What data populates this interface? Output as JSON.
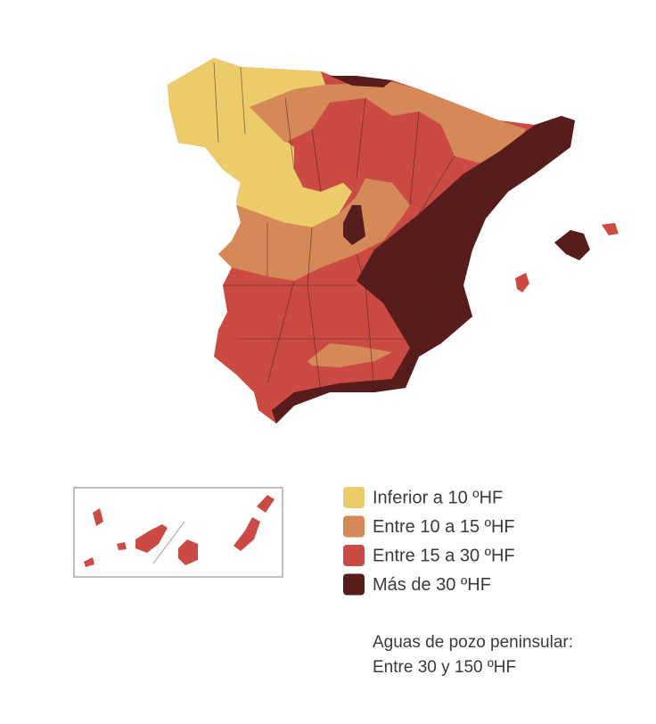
{
  "legend": {
    "items": [
      {
        "label": "Inferior a 10 ºHF",
        "color": "#eccb6b"
      },
      {
        "label": "Entre 10 a 15 ºHF",
        "color": "#d58858"
      },
      {
        "label": "Entre 15 a 30 ºHF",
        "color": "#cc4a44"
      },
      {
        "label": "Más de 30 ºHF",
        "color": "#571c1c"
      }
    ]
  },
  "note": {
    "lines": [
      "Aguas de pozo peninsular:",
      "Entre 30 y 150 ºHF"
    ]
  }
}
